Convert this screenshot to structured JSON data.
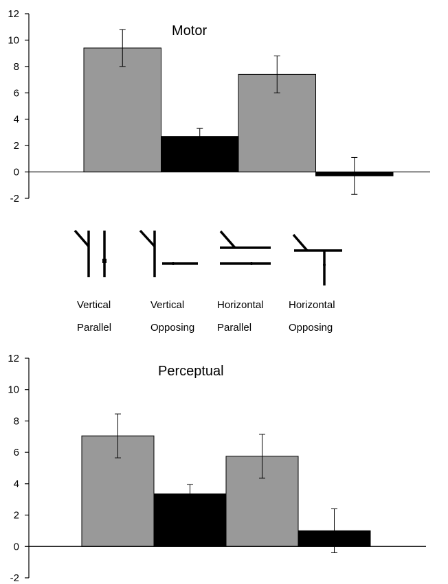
{
  "chart_data": [
    {
      "type": "bar",
      "title": "Motor",
      "categories": [
        "Vertical Parallel",
        "Vertical Opposing",
        "Horizontal Parallel",
        "Horizontal Opposing"
      ],
      "values": [
        9.4,
        2.7,
        7.4,
        -0.3
      ],
      "error": [
        1.4,
        0.6,
        1.4,
        1.4
      ],
      "colors": [
        "#999999",
        "#000000",
        "#999999",
        "#000000"
      ],
      "ylim": [
        -2,
        12
      ],
      "yticks": [
        "-2",
        "0",
        "2",
        "4",
        "6",
        "8",
        "10",
        "12"
      ]
    },
    {
      "type": "bar",
      "title": "Perceptual",
      "categories": [
        "Vertical Parallel",
        "Vertical Opposing",
        "Horizontal Parallel",
        "Horizontal Opposing"
      ],
      "values": [
        7.05,
        3.35,
        5.75,
        1.0
      ],
      "error": [
        1.4,
        0.6,
        1.4,
        1.4
      ],
      "colors": [
        "#999999",
        "#000000",
        "#999999",
        "#000000"
      ],
      "ylim": [
        -2,
        12
      ],
      "yticks": [
        "-2",
        "0",
        "2",
        "4",
        "6",
        "8",
        "10",
        "12"
      ]
    }
  ],
  "conditions": [
    {
      "line1": "Vertical",
      "line2": "Parallel",
      "icon": "vertical-parallel-icon"
    },
    {
      "line1": "Vertical",
      "line2": "Opposing",
      "icon": "vertical-opposing-icon"
    },
    {
      "line1": "Horizontal",
      "line2": "Parallel",
      "icon": "horizontal-parallel-icon"
    },
    {
      "line1": "Horizontal",
      "line2": "Opposing",
      "icon": "horizontal-opposing-icon"
    }
  ]
}
